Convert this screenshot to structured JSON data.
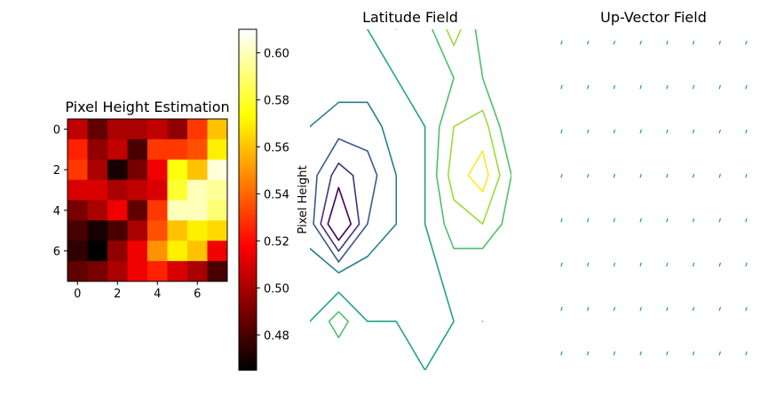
{
  "chart_data": [
    {
      "type": "heatmap",
      "title": "Pixel Height Estimation",
      "colormap": "hot",
      "xticks": [
        "0",
        "2",
        "4",
        "6"
      ],
      "yticks": [
        "0",
        "2",
        "4",
        "6"
      ],
      "values": [
        [
          0.505,
          0.485,
          0.5,
          0.5,
          0.505,
          0.495,
          0.53,
          0.56
        ],
        [
          0.525,
          0.495,
          0.505,
          0.48,
          0.53,
          0.53,
          0.535,
          0.57
        ],
        [
          0.53,
          0.5,
          0.47,
          0.49,
          0.515,
          0.575,
          0.56,
          0.605
        ],
        [
          0.51,
          0.51,
          0.5,
          0.505,
          0.51,
          0.58,
          0.6,
          0.595
        ],
        [
          0.49,
          0.5,
          0.515,
          0.485,
          0.53,
          0.6,
          0.6,
          0.59
        ],
        [
          0.48,
          0.47,
          0.48,
          0.5,
          0.535,
          0.56,
          0.57,
          0.565
        ],
        [
          0.475,
          0.465,
          0.495,
          0.515,
          0.55,
          0.57,
          0.56,
          0.515
        ],
        [
          0.485,
          0.49,
          0.5,
          0.515,
          0.525,
          0.51,
          0.5,
          0.48
        ]
      ],
      "colorbar": {
        "label": "Pixel Height",
        "range": [
          0.465,
          0.61
        ],
        "ticks": [
          {
            "value": 0.48,
            "label": "0.48"
          },
          {
            "value": 0.5,
            "label": "0.50"
          },
          {
            "value": 0.52,
            "label": "0.52"
          },
          {
            "value": 0.54,
            "label": "0.54"
          },
          {
            "value": 0.56,
            "label": "0.56"
          },
          {
            "value": 0.58,
            "label": "0.58"
          },
          {
            "value": 0.6,
            "label": "0.60"
          }
        ]
      }
    },
    {
      "type": "contour",
      "title": "Latitude Field",
      "axis_visible": false,
      "colormap": "viridis",
      "levels": [
        0.2,
        0.3,
        0.4,
        0.5,
        0.6,
        0.7,
        0.8,
        0.9
      ],
      "grid_size": [
        8,
        8
      ],
      "values": [
        [
          0.55,
          0.55,
          0.6,
          0.7,
          0.65,
          0.85,
          0.65,
          0.6
        ],
        [
          0.55,
          0.55,
          0.55,
          0.6,
          0.6,
          0.7,
          0.7,
          0.6
        ],
        [
          0.5,
          0.45,
          0.45,
          0.55,
          0.6,
          0.8,
          0.85,
          0.6
        ],
        [
          0.45,
          0.25,
          0.35,
          0.5,
          0.6,
          0.85,
          0.95,
          0.7
        ],
        [
          0.45,
          0.05,
          0.4,
          0.5,
          0.6,
          0.75,
          0.8,
          0.65
        ],
        [
          0.55,
          0.5,
          0.55,
          0.55,
          0.55,
          0.65,
          0.6,
          0.6
        ],
        [
          0.6,
          0.75,
          0.6,
          0.6,
          0.55,
          0.6,
          0.7,
          0.6
        ],
        [
          0.6,
          0.6,
          0.65,
          0.6,
          0.6,
          0.65,
          0.6,
          0.6
        ]
      ]
    },
    {
      "type": "quiver",
      "title": "Up-Vector Field",
      "axis_visible": false,
      "color": "#1a9e84",
      "grid_size": [
        8,
        8
      ],
      "vector": {
        "u": 0.15,
        "v": 0.5
      }
    }
  ]
}
